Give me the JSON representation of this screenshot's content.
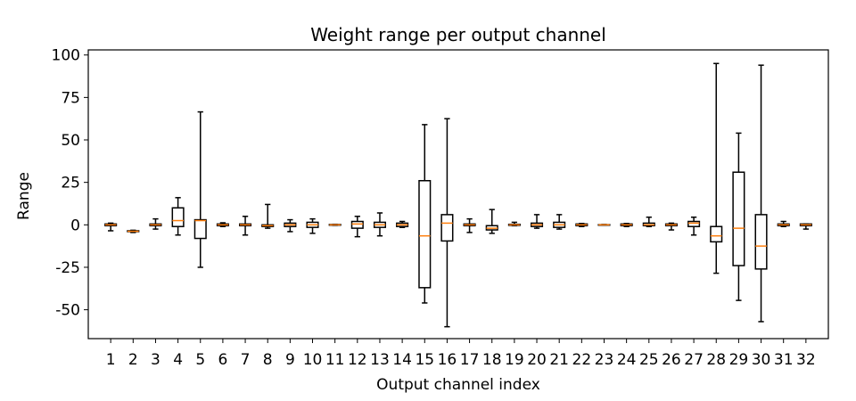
{
  "chart_data": {
    "type": "boxplot",
    "title": "Weight range per output channel",
    "xlabel": "Output channel index",
    "ylabel": "Range",
    "ylim": [
      -67,
      103
    ],
    "yticks": [
      -50,
      -25,
      0,
      25,
      50,
      75,
      100
    ],
    "grid": false,
    "box_color": "#000000",
    "median_color": "#ff7f0e",
    "categories": [
      "1",
      "2",
      "3",
      "4",
      "5",
      "6",
      "7",
      "8",
      "9",
      "10",
      "11",
      "12",
      "13",
      "14",
      "15",
      "16",
      "17",
      "18",
      "19",
      "20",
      "21",
      "22",
      "23",
      "24",
      "25",
      "26",
      "27",
      "28",
      "29",
      "30",
      "31",
      "32"
    ],
    "boxes": [
      {
        "whisker_low": -3.5,
        "q1": -0.5,
        "median": 0.0,
        "q3": 0.5,
        "whisker_high": 1.0
      },
      {
        "whisker_low": -4.5,
        "q1": -4.0,
        "median": -3.8,
        "q3": -3.5,
        "whisker_high": -3.2
      },
      {
        "whisker_low": -2.5,
        "q1": -0.5,
        "median": 0.0,
        "q3": 0.5,
        "whisker_high": 3.5
      },
      {
        "whisker_low": -6.0,
        "q1": -1.0,
        "median": 2.5,
        "q3": 10.0,
        "whisker_high": 16.0
      },
      {
        "whisker_low": -25.0,
        "q1": -8.0,
        "median": 2.5,
        "q3": 3.0,
        "whisker_high": 66.5
      },
      {
        "whisker_low": -1.0,
        "q1": -0.5,
        "median": 0.0,
        "q3": 0.5,
        "whisker_high": 1.2
      },
      {
        "whisker_low": -6.0,
        "q1": -0.5,
        "median": 0.0,
        "q3": 0.5,
        "whisker_high": 5.0
      },
      {
        "whisker_low": -2.0,
        "q1": -1.0,
        "median": -0.5,
        "q3": 0.0,
        "whisker_high": 12.0
      },
      {
        "whisker_low": -4.0,
        "q1": -1.0,
        "median": 0.0,
        "q3": 1.0,
        "whisker_high": 3.0
      },
      {
        "whisker_low": -5.0,
        "q1": -1.5,
        "median": 0.0,
        "q3": 1.5,
        "whisker_high": 3.5
      },
      {
        "whisker_low": -0.3,
        "q1": -0.2,
        "median": 0.0,
        "q3": 0.2,
        "whisker_high": 0.3
      },
      {
        "whisker_low": -7.0,
        "q1": -2.0,
        "median": 0.5,
        "q3": 2.0,
        "whisker_high": 5.0
      },
      {
        "whisker_low": -6.5,
        "q1": -1.5,
        "median": 0.0,
        "q3": 1.5,
        "whisker_high": 7.0
      },
      {
        "whisker_low": -1.5,
        "q1": -1.0,
        "median": 0.0,
        "q3": 1.0,
        "whisker_high": 2.0
      },
      {
        "whisker_low": -46.0,
        "q1": -37.0,
        "median": -6.5,
        "q3": 26.0,
        "whisker_high": 59.0
      },
      {
        "whisker_low": -60.0,
        "q1": -9.5,
        "median": 1.0,
        "q3": 6.0,
        "whisker_high": 62.5
      },
      {
        "whisker_low": -4.5,
        "q1": -0.5,
        "median": 0.0,
        "q3": 0.5,
        "whisker_high": 3.5
      },
      {
        "whisker_low": -5.0,
        "q1": -3.0,
        "median": -2.0,
        "q3": -0.5,
        "whisker_high": 9.0
      },
      {
        "whisker_low": -0.5,
        "q1": -0.3,
        "median": 0.0,
        "q3": 0.3,
        "whisker_high": 1.5
      },
      {
        "whisker_low": -2.0,
        "q1": -1.0,
        "median": 0.0,
        "q3": 1.0,
        "whisker_high": 6.0
      },
      {
        "whisker_low": -2.5,
        "q1": -1.5,
        "median": 0.0,
        "q3": 1.5,
        "whisker_high": 6.0
      },
      {
        "whisker_low": -1.0,
        "q1": -0.5,
        "median": 0.0,
        "q3": 0.5,
        "whisker_high": 0.8
      },
      {
        "whisker_low": -0.2,
        "q1": -0.1,
        "median": 0.0,
        "q3": 0.1,
        "whisker_high": 0.2
      },
      {
        "whisker_low": -1.0,
        "q1": -0.5,
        "median": 0.0,
        "q3": 0.5,
        "whisker_high": 0.8
      },
      {
        "whisker_low": -1.0,
        "q1": -0.5,
        "median": 0.0,
        "q3": 1.0,
        "whisker_high": 4.5
      },
      {
        "whisker_low": -3.0,
        "q1": -0.5,
        "median": 0.0,
        "q3": 0.5,
        "whisker_high": 1.0
      },
      {
        "whisker_low": -6.0,
        "q1": -1.0,
        "median": 1.0,
        "q3": 2.0,
        "whisker_high": 4.5
      },
      {
        "whisker_low": -28.5,
        "q1": -10.0,
        "median": -6.5,
        "q3": -1.0,
        "whisker_high": 95.0
      },
      {
        "whisker_low": -44.5,
        "q1": -24.0,
        "median": -2.0,
        "q3": 31.0,
        "whisker_high": 54.0
      },
      {
        "whisker_low": -57.0,
        "q1": -26.0,
        "median": -12.5,
        "q3": 6.0,
        "whisker_high": 94.0
      },
      {
        "whisker_low": -1.0,
        "q1": -0.5,
        "median": 0.0,
        "q3": 0.5,
        "whisker_high": 2.0
      },
      {
        "whisker_low": -2.5,
        "q1": -0.5,
        "median": 0.0,
        "q3": 0.5,
        "whisker_high": 0.5
      }
    ]
  }
}
